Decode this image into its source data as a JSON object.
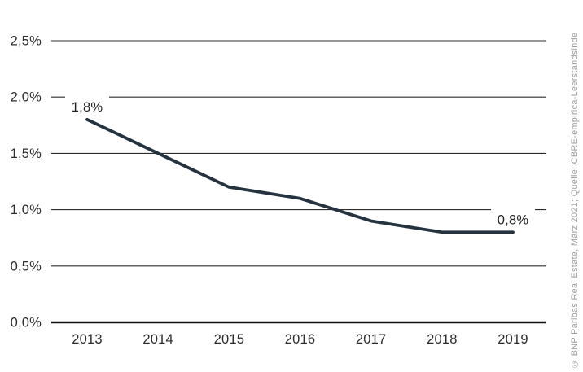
{
  "chart_data": {
    "type": "line",
    "title": "",
    "categories": [
      "2013",
      "2014",
      "2015",
      "2016",
      "2017",
      "2018",
      "2019"
    ],
    "values": [
      1.8,
      1.5,
      1.2,
      1.1,
      0.9,
      0.8,
      0.8
    ],
    "unit": "%",
    "ylim": [
      0,
      2.5
    ],
    "y_ticks": [
      {
        "value": 2.5,
        "label": "2,5%"
      },
      {
        "value": 2.0,
        "label": "2,0%"
      },
      {
        "value": 1.5,
        "label": "1,5%"
      },
      {
        "value": 1.0,
        "label": "1,0%"
      },
      {
        "value": 0.5,
        "label": "0,5%"
      },
      {
        "value": 0.0,
        "label": "0,0%"
      }
    ],
    "point_labels": [
      {
        "index": 0,
        "text": "1,8%"
      },
      {
        "index": 6,
        "text": "0,8%"
      }
    ],
    "grid": true,
    "legend": false,
    "colors": {
      "line": "#253340",
      "grid": "#2e2e2e",
      "axis": "#111111",
      "tick_text": "#2b2b2b",
      "point_label_text": "#222222",
      "background": "#ffffff",
      "source_text": "#9c9c9c"
    }
  },
  "source_note": "© BNP Paribas Real Estate, März 2021; Quelle: CBRE-empirica-Leerstandsinde"
}
